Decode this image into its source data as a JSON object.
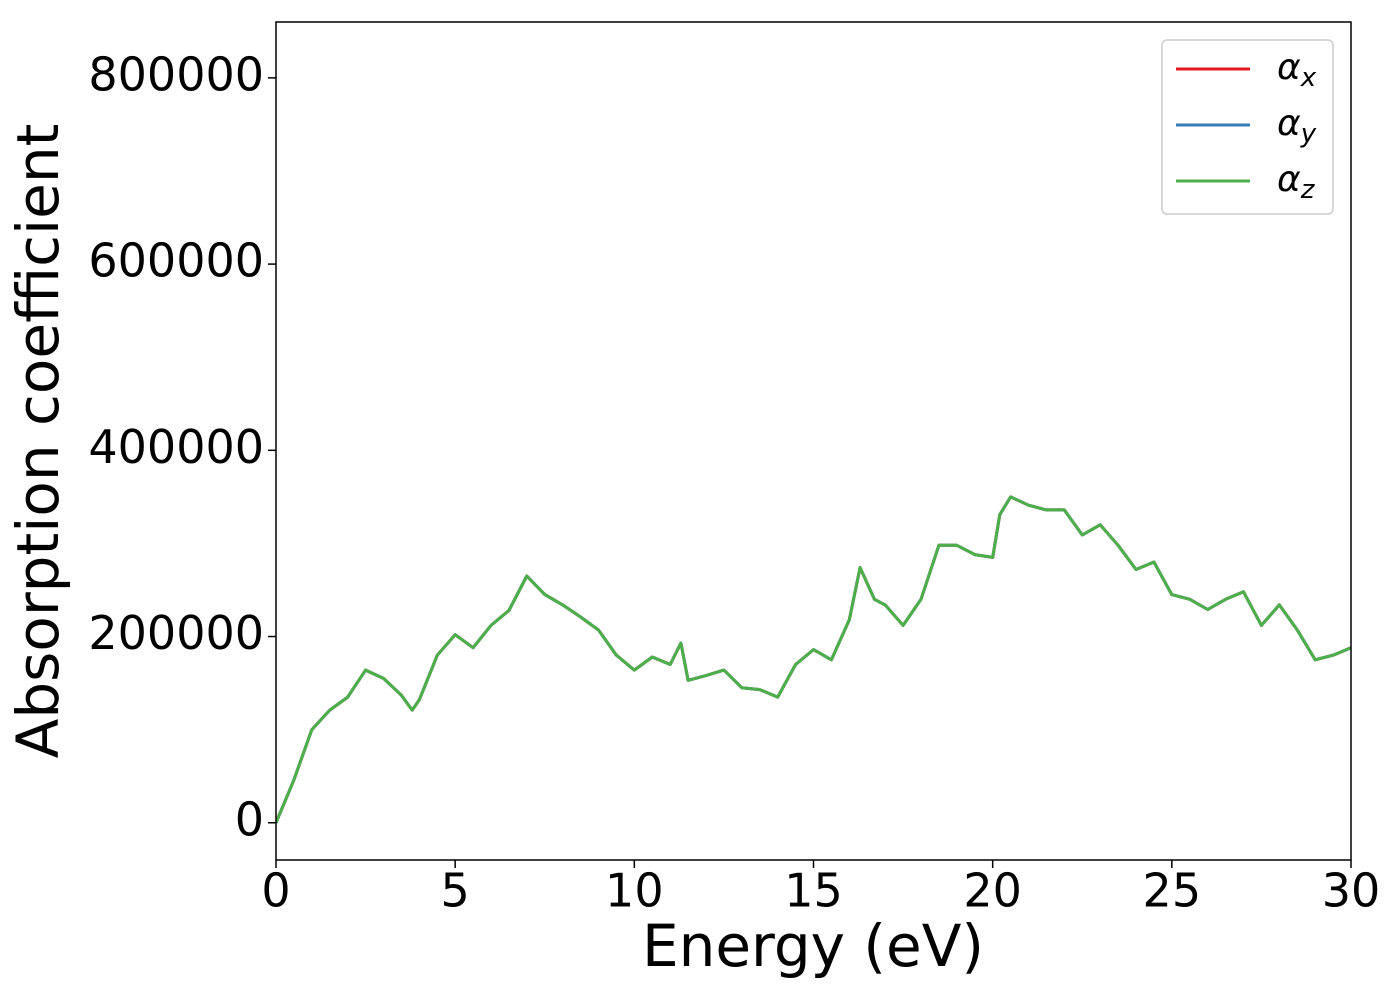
{
  "chart_data": {
    "type": "line",
    "xlabel": "Energy (eV)",
    "ylabel": "Absorption coefficient",
    "x": [
      0,
      0.5,
      1,
      1.5,
      2,
      2.5,
      3,
      3.5,
      3.8,
      4,
      4.5,
      5,
      5.5,
      6,
      6.5,
      7,
      7.5,
      8,
      8.5,
      9,
      9.5,
      10,
      10.5,
      11,
      11.3,
      11.5,
      12,
      12.5,
      13,
      13.5,
      14,
      14.5,
      15,
      15.5,
      16,
      16.3,
      16.7,
      17,
      17.5,
      18,
      18.5,
      19,
      19.5,
      20,
      20.2,
      20.5,
      21,
      21.5,
      22,
      22.5,
      23,
      23.5,
      24,
      24.5,
      25,
      25.5,
      26,
      26.5,
      27,
      27.5,
      28,
      28.5,
      29,
      29.5,
      30
    ],
    "series": [
      {
        "name": "αx",
        "color": "#e41a1c",
        "values": [
          0,
          46000,
          100000,
          121000,
          135000,
          164000,
          155000,
          137000,
          121000,
          132000,
          180000,
          202000,
          188000,
          212000,
          228000,
          265000,
          245000,
          234000,
          221000,
          207000,
          180000,
          164000,
          178000,
          170000,
          193000,
          153000,
          158000,
          164000,
          145000,
          143000,
          135000,
          170000,
          186000,
          175000,
          218000,
          274000,
          240000,
          234000,
          212000,
          240000,
          298000,
          298000,
          288000,
          285000,
          331000,
          350000,
          341000,
          336000,
          336000,
          309000,
          320000,
          298000,
          272000,
          280000,
          245000,
          240000,
          229000,
          240000,
          248000,
          212000,
          234000,
          207000,
          175000,
          180000,
          188000
        ]
      },
      {
        "name": "αy",
        "color": "#377eb8",
        "values": [
          0,
          46000,
          100000,
          121000,
          135000,
          164000,
          155000,
          137000,
          121000,
          132000,
          180000,
          202000,
          188000,
          212000,
          228000,
          265000,
          245000,
          234000,
          221000,
          207000,
          180000,
          164000,
          178000,
          170000,
          193000,
          153000,
          158000,
          164000,
          145000,
          143000,
          135000,
          170000,
          186000,
          175000,
          218000,
          274000,
          240000,
          234000,
          212000,
          240000,
          298000,
          298000,
          288000,
          285000,
          331000,
          350000,
          341000,
          336000,
          336000,
          309000,
          320000,
          298000,
          272000,
          280000,
          245000,
          240000,
          229000,
          240000,
          248000,
          212000,
          234000,
          207000,
          175000,
          180000,
          188000
        ]
      },
      {
        "name": "αz",
        "color": "#4daf4a",
        "values": [
          0,
          46000,
          100000,
          121000,
          135000,
          164000,
          155000,
          137000,
          121000,
          132000,
          180000,
          202000,
          188000,
          212000,
          228000,
          265000,
          245000,
          234000,
          221000,
          207000,
          180000,
          164000,
          178000,
          170000,
          193000,
          153000,
          158000,
          164000,
          145000,
          143000,
          135000,
          170000,
          186000,
          175000,
          218000,
          274000,
          240000,
          234000,
          212000,
          240000,
          298000,
          298000,
          288000,
          285000,
          331000,
          350000,
          341000,
          336000,
          336000,
          309000,
          320000,
          298000,
          272000,
          280000,
          245000,
          240000,
          229000,
          240000,
          248000,
          212000,
          234000,
          207000,
          175000,
          180000,
          188000
        ]
      }
    ],
    "xlim": [
      0,
      30
    ],
    "xticks": [
      0,
      5,
      10,
      15,
      20,
      25,
      30
    ],
    "ylim": [
      -40000,
      860000
    ],
    "yticks": [
      0,
      200000,
      400000,
      600000,
      800000
    ],
    "grid": false,
    "legend": "upper right"
  }
}
